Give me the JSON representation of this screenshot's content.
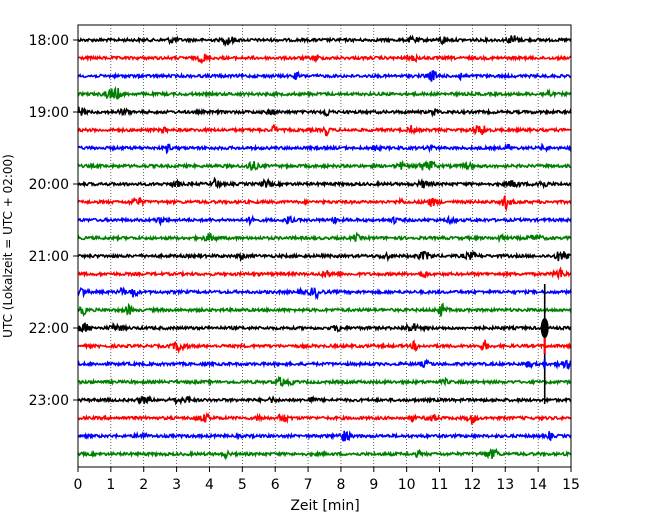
{
  "chart_data": {
    "type": "line",
    "title": "",
    "xlabel": "Zeit  [min]",
    "ylabel": "UTC (Lokalzeit = UTC + 02:00)",
    "xlim": [
      0,
      15
    ],
    "x_ticks": [
      "0",
      "1",
      "2",
      "3",
      "4",
      "5",
      "6",
      "7",
      "8",
      "9",
      "10",
      "11",
      "12",
      "13",
      "14",
      "15"
    ],
    "y_tick_labels": [
      "18:00",
      "19:00",
      "20:00",
      "21:00",
      "22:00",
      "23:00"
    ],
    "trace_start_times": [
      "18:00",
      "18:15",
      "18:30",
      "18:45",
      "19:00",
      "19:15",
      "19:30",
      "19:45",
      "20:00",
      "20:15",
      "20:30",
      "20:45",
      "21:00",
      "21:15",
      "21:30",
      "21:45",
      "22:00",
      "22:15",
      "22:30",
      "22:45",
      "23:00",
      "23:15",
      "23:30",
      "23:45"
    ],
    "trace_colors": [
      "#000000",
      "#ff0000",
      "#0000ff",
      "#008000"
    ],
    "grid": {
      "vertical_dotted": true
    },
    "event": {
      "x_min": 14.2,
      "peak_trace": "22:00",
      "spans_from": "21:30",
      "spans_to": "23:00"
    }
  }
}
